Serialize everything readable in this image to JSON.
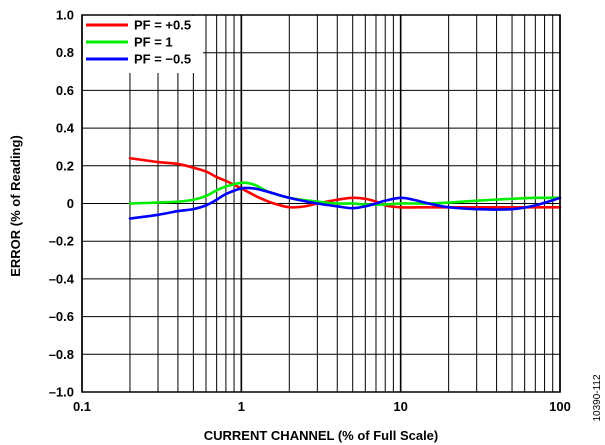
{
  "chart_data": {
    "type": "line",
    "xlabel": "CURRENT CHANNEL (% of Full Scale)",
    "ylabel": "ERROR (% of Reading)",
    "xscale": "log",
    "xlim": [
      0.1,
      100
    ],
    "ylim": [
      -1.0,
      1.0
    ],
    "grid": true,
    "legend_position": "top-left",
    "x_tick_labels": [
      "0.1",
      "1",
      "10",
      "100"
    ],
    "y_tick_labels": [
      "1.0",
      "0.8",
      "0.6",
      "0.4",
      "0.2",
      "0",
      "–0.2",
      "–0.4",
      "–0.6",
      "–0.8",
      "–1.0"
    ],
    "series": [
      {
        "name": "PF = +0.5",
        "color": "#ff0000",
        "x": [
          0.2,
          0.3,
          0.4,
          0.5,
          0.6,
          0.7,
          0.8,
          1,
          1.3,
          1.6,
          2,
          2.5,
          3,
          4,
          5,
          6,
          7,
          8,
          10,
          15,
          20,
          30,
          50,
          70,
          100
        ],
        "y": [
          0.24,
          0.22,
          0.21,
          0.19,
          0.17,
          0.14,
          0.12,
          0.08,
          0.03,
          0.0,
          -0.02,
          -0.015,
          0.0,
          0.02,
          0.03,
          0.025,
          0.01,
          -0.01,
          -0.02,
          -0.02,
          -0.02,
          -0.02,
          -0.02,
          -0.02,
          -0.02
        ]
      },
      {
        "name": "PF = 1",
        "color": "#00ee00",
        "x": [
          0.2,
          0.3,
          0.4,
          0.5,
          0.6,
          0.7,
          0.8,
          1,
          1.2,
          1.5,
          2,
          3,
          4,
          5,
          6,
          8,
          10,
          15,
          20,
          30,
          50,
          70,
          100
        ],
        "y": [
          0.0,
          0.005,
          0.01,
          0.02,
          0.04,
          0.07,
          0.09,
          0.11,
          0.1,
          0.06,
          0.03,
          0.01,
          0.0,
          0.0,
          -0.005,
          -0.005,
          0.0,
          0.0,
          0.005,
          0.015,
          0.025,
          0.03,
          0.03
        ]
      },
      {
        "name": "PF = −0.5",
        "color": "#0000ff",
        "x": [
          0.2,
          0.3,
          0.4,
          0.5,
          0.6,
          0.7,
          0.8,
          1,
          1.2,
          1.5,
          2,
          3,
          4,
          5,
          6,
          7,
          8,
          10,
          12,
          15,
          20,
          30,
          50,
          70,
          100
        ],
        "y": [
          -0.08,
          -0.06,
          -0.04,
          -0.03,
          -0.01,
          0.02,
          0.05,
          0.08,
          0.08,
          0.06,
          0.03,
          0.0,
          -0.015,
          -0.025,
          -0.015,
          0.0,
          0.015,
          0.03,
          0.02,
          0.0,
          -0.02,
          -0.03,
          -0.03,
          -0.01,
          0.03
        ]
      }
    ]
  },
  "figure_id": "10390-112"
}
